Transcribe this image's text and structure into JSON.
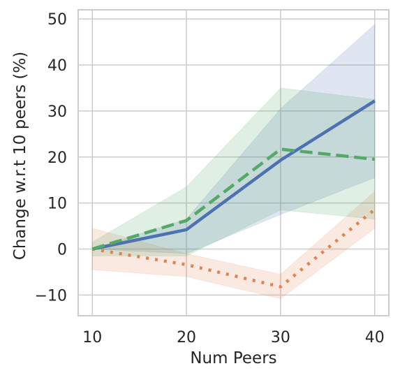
{
  "chart_data": {
    "type": "line",
    "title": "",
    "xlabel": "Num Peers",
    "ylabel": "Change w.r.t 10 peers (%)",
    "x": [
      10,
      20,
      30,
      40
    ],
    "xticks": [
      "10",
      "20",
      "30",
      "40"
    ],
    "yticks": [
      "−10",
      "0",
      "10",
      "20",
      "30",
      "40",
      "50"
    ],
    "xlim": [
      8.5,
      41.5
    ],
    "ylim": [
      -14.5,
      52
    ],
    "grid": true,
    "legend": "none",
    "series": [
      {
        "color": "#4c72b0",
        "line_style": "solid",
        "values": [
          0,
          4.2,
          19.3,
          32.2
        ],
        "band_lower": [
          0,
          -1.0,
          7.5,
          15.5
        ],
        "band_upper": [
          0,
          6.5,
          30.5,
          48.8
        ]
      },
      {
        "color": "#dd8452",
        "line_style": "dotted",
        "values": [
          0,
          -3.4,
          -8.2,
          8.6
        ],
        "band_lower": [
          -4.5,
          -6.0,
          -10.8,
          4.5
        ],
        "band_upper": [
          4.5,
          -1.0,
          -5.5,
          12.5
        ]
      },
      {
        "color": "#55a868",
        "line_style": "dashed",
        "values": [
          0,
          6.2,
          21.7,
          19.5
        ],
        "band_lower": [
          -1.5,
          -1.5,
          8.5,
          6.5
        ],
        "band_upper": [
          1.5,
          13.5,
          35.0,
          32.5
        ]
      }
    ]
  }
}
